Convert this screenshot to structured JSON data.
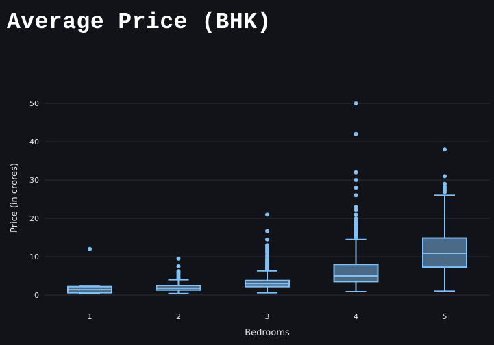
{
  "page": {
    "title": "Average Price (BHK)"
  },
  "theme": {
    "background": "#121318",
    "box_line": "#83c1f5",
    "box_fill": "#4b6a87",
    "grid": "#2b2e36"
  },
  "chart_data": {
    "type": "box",
    "xlabel": "Bedrooms",
    "ylabel": "Price (in crores)",
    "ylim": [
      -2,
      53
    ],
    "yticks": [
      0,
      10,
      20,
      30,
      40,
      50
    ],
    "grid": true,
    "legend": "none",
    "categories": [
      "1",
      "2",
      "3",
      "4",
      "5"
    ],
    "boxes": [
      {
        "category": "1",
        "lower_fence": 0.4,
        "q1": 0.6,
        "median": 1.4,
        "q3": 2.2,
        "upper_fence": 2.3,
        "outliers": [
          12.0
        ]
      },
      {
        "category": "2",
        "lower_fence": 0.4,
        "q1": 1.3,
        "median": 1.8,
        "q3": 2.5,
        "upper_fence": 4.0,
        "outliers": [
          4.4,
          4.8,
          5.3,
          5.7,
          6.2,
          7.5,
          9.5
        ]
      },
      {
        "category": "3",
        "lower_fence": 0.6,
        "q1": 2.2,
        "median": 3.0,
        "q3": 3.8,
        "upper_fence": 6.3,
        "outliers": [
          6.6,
          6.9,
          7.1,
          7.4,
          7.7,
          8.0,
          8.3,
          8.6,
          9.0,
          9.4,
          9.9,
          10.4,
          11.0,
          11.5,
          12.0,
          12.5,
          13.0,
          14.5,
          16.7,
          21.0
        ]
      },
      {
        "category": "4",
        "lower_fence": 0.9,
        "q1": 3.5,
        "median": 5.0,
        "q3": 8.0,
        "upper_fence": 14.5,
        "outliers": [
          15.0,
          15.5,
          16.0,
          16.5,
          17.0,
          17.5,
          18.0,
          18.5,
          19.0,
          19.5,
          20.0,
          21.0,
          22.3,
          23.0,
          26.0,
          28.0,
          30.0,
          32.0,
          42.0,
          50.0
        ]
      },
      {
        "category": "5",
        "lower_fence": 1.0,
        "q1": 7.3,
        "median": 10.9,
        "q3": 14.9,
        "upper_fence": 26.0,
        "outliers": [
          26.8,
          27.2,
          27.6,
          28.2,
          29.0,
          31.0,
          38.0
        ]
      }
    ]
  }
}
